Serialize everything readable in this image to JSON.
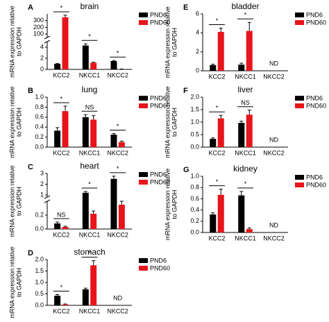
{
  "chart_data": [
    {
      "type": "bar",
      "label": "A",
      "title": "brain",
      "ylabel": [
        "mRNA expression relative",
        "to GAPDH"
      ],
      "categories": [
        "KCC2",
        "NKCC1",
        "NKCC2"
      ],
      "series": [
        {
          "name": "PND6",
          "color": "#000000",
          "values": [
            1.0,
            4.3,
            1.5
          ],
          "errors": [
            0.05,
            0.3,
            0.1
          ]
        },
        {
          "name": "PND60",
          "color": "#e8141b",
          "values": [
            350,
            1.2,
            0.05
          ],
          "errors": [
            30,
            0.1,
            0.02
          ]
        }
      ],
      "significance": [
        "*",
        "*",
        "*"
      ],
      "ylim": [
        0,
        400
      ],
      "axis_break": {
        "lower": [
          0,
          5
        ],
        "upper": [
          50,
          400
        ]
      },
      "yticks": [
        0,
        2,
        4,
        100,
        200,
        300
      ]
    },
    {
      "type": "bar",
      "label": "B",
      "title": "lung",
      "ylabel": [
        "mRNA expression relative",
        "to GAPDH"
      ],
      "categories": [
        "KCC2",
        "NKCC1",
        "NKCC2"
      ],
      "series": [
        {
          "name": "PND6",
          "color": "#000000",
          "values": [
            0.33,
            0.6,
            0.25
          ],
          "errors": [
            0.06,
            0.05,
            0.02
          ]
        },
        {
          "name": "PND60",
          "color": "#e8141b",
          "values": [
            0.72,
            0.55,
            0.1
          ],
          "errors": [
            0.1,
            0.08,
            0.02
          ]
        }
      ],
      "significance": [
        "*",
        "NS",
        "*"
      ],
      "ylim": [
        0,
        1.0
      ],
      "yticks": [
        {
          "value": 0,
          "label": "0.0"
        },
        0.2,
        0.4,
        0.6,
        0.8,
        {
          "value": 1.0,
          "label": "1.0"
        }
      ]
    },
    {
      "type": "bar",
      "label": "C",
      "title": "heart",
      "ylabel": [
        "mRNA expression relative",
        "to GAPDH"
      ],
      "categories": [
        "KCC2",
        "NKCC1",
        "NKCC2"
      ],
      "series": [
        {
          "name": "PND6",
          "color": "#000000",
          "values": [
            0.08,
            1.2,
            2.5
          ],
          "errors": [
            0.02,
            0.12,
            0.25
          ]
        },
        {
          "name": "PND60",
          "color": "#e8141b",
          "values": [
            0.03,
            0.22,
            0.35
          ],
          "errors": [
            0.01,
            0.04,
            0.05
          ]
        }
      ],
      "significance": [
        "NS",
        "*",
        "*"
      ],
      "ylim": [
        0,
        3
      ],
      "axis_break": {
        "lower": [
          0,
          0.4
        ],
        "upper": [
          0.8,
          3
        ]
      },
      "yticks": [
        {
          "value": 0,
          "label": "0.0"
        },
        0.2,
        1,
        2,
        3
      ]
    },
    {
      "type": "bar",
      "label": "D",
      "title": "stomach",
      "ylabel": [
        "mRNA expression relative",
        "to GAPDH"
      ],
      "categories": [
        "KCC2",
        "NKCC1",
        "NKCC2"
      ],
      "series": [
        {
          "name": "PND6",
          "color": "#000000",
          "values": [
            0.42,
            0.7,
            null
          ],
          "errors": [
            0.05,
            0.05,
            null
          ]
        },
        {
          "name": "PND60",
          "color": "#e8141b",
          "values": [
            0.04,
            1.75,
            null
          ],
          "errors": [
            0.02,
            0.2,
            null
          ]
        }
      ],
      "significance": [
        "*",
        "*",
        null
      ],
      "missing_label": "ND",
      "ylim": [
        0,
        2.0
      ],
      "yticks": [
        {
          "value": 0,
          "label": "0.0"
        },
        0.5,
        {
          "value": 1.0,
          "label": "1.0"
        },
        1.5,
        {
          "value": 2.0,
          "label": "2.0"
        }
      ]
    },
    {
      "type": "bar",
      "label": "E",
      "title": "bladder",
      "ylabel": [
        "mRNA expression relative",
        "to GAPDH"
      ],
      "categories": [
        "KCC2",
        "NKCC1",
        "NKCC2"
      ],
      "series": [
        {
          "name": "PND6",
          "color": "#000000",
          "values": [
            0.6,
            0.65,
            null
          ],
          "errors": [
            0.1,
            0.15,
            null
          ]
        },
        {
          "name": "PND60",
          "color": "#e8141b",
          "values": [
            4.1,
            4.2,
            null
          ],
          "errors": [
            0.4,
            0.9,
            null
          ]
        }
      ],
      "significance": [
        "*",
        "*",
        null
      ],
      "missing_label": "ND",
      "ylim": [
        0,
        6
      ],
      "yticks": [
        0,
        2,
        4,
        6
      ]
    },
    {
      "type": "bar",
      "label": "F",
      "title": "liver",
      "ylabel": [
        "mRNA expression relative",
        "to GAPDH"
      ],
      "categories": [
        "KCC2",
        "NKCC1",
        "NKCC2"
      ],
      "series": [
        {
          "name": "PND6",
          "color": "#000000",
          "values": [
            0.33,
            0.97,
            null
          ],
          "errors": [
            0.04,
            0.07,
            null
          ]
        },
        {
          "name": "PND60",
          "color": "#e8141b",
          "values": [
            1.15,
            1.3,
            null
          ],
          "errors": [
            0.12,
            0.18,
            null
          ]
        }
      ],
      "significance": [
        "*",
        "NS",
        null
      ],
      "missing_label": "ND",
      "ylim": [
        0,
        2.0
      ],
      "yticks": [
        {
          "value": 0,
          "label": "0.0"
        },
        0.5,
        {
          "value": 1.0,
          "label": "1.0"
        },
        1.5,
        {
          "value": 2.0,
          "label": "2.0"
        }
      ]
    },
    {
      "type": "bar",
      "label": "G",
      "title": "kidney",
      "ylabel": [
        "mRNA expression relative",
        "to GAPDH"
      ],
      "categories": [
        "KCC2",
        "NKCC1",
        "NKCC2"
      ],
      "series": [
        {
          "name": "PND6",
          "color": "#000000",
          "values": [
            0.32,
            0.66,
            null
          ],
          "errors": [
            0.03,
            0.07,
            null
          ]
        },
        {
          "name": "PND60",
          "color": "#e8141b",
          "values": [
            0.67,
            0.06,
            null
          ],
          "errors": [
            0.1,
            0.02,
            null
          ]
        }
      ],
      "significance": [
        "*",
        "*",
        null
      ],
      "missing_label": "ND",
      "ylim": [
        0,
        1.0
      ],
      "yticks": [
        {
          "value": 0,
          "label": "0.0"
        },
        0.2,
        0.4,
        0.6,
        0.8,
        {
          "value": 1.0,
          "label": "1.0"
        }
      ]
    }
  ]
}
